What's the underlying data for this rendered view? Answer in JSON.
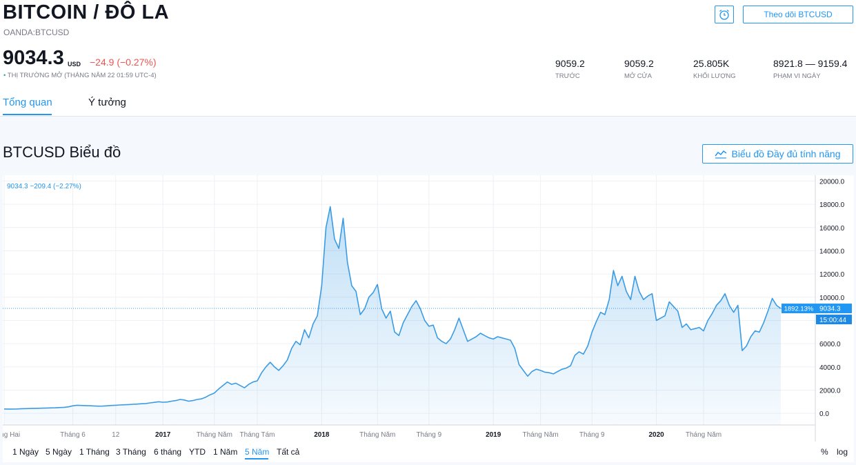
{
  "header": {
    "title": "BITCOIN / ĐÔ LA",
    "subtitle": "OANDA:BTCUSD",
    "follow_label": "Theo dõi BTCUSD"
  },
  "quote": {
    "price": "9034.3",
    "unit": "USD",
    "change": "−24.9 (−0.27%)",
    "status_dot": "•",
    "status": "THỊ TRƯỜNG MỞ",
    "status_time": "(THÁNG NĂM 22 01:59 UTC-4)"
  },
  "stats": [
    {
      "value": "9059.2",
      "label": "TRƯỚC"
    },
    {
      "value": "9059.2",
      "label": "MỞ CỬA"
    },
    {
      "value": "25.805K",
      "label": "KHỐI LƯỢNG"
    },
    {
      "value": "8921.8 — 9159.4",
      "label": "PHẠM VI NGÀY"
    }
  ],
  "tabs": [
    {
      "label": "Tổng quan",
      "active": true
    },
    {
      "label": "Ý tưởng",
      "active": false
    }
  ],
  "chart_section": {
    "title": "BTCUSD Biểu đồ",
    "full_chart_label": "Biểu đồ Đầy đủ tính năng"
  },
  "chart_data": {
    "type": "area",
    "legend_text": "9034.3  −209.4 (−2.27%)",
    "ylim": [
      -1000,
      20500
    ],
    "y_ticks": [
      "20000.0",
      "18000.0",
      "16000.0",
      "14000.0",
      "12000.0",
      "10000.0",
      "8000.0",
      "6000.0",
      "4000.0",
      "2000.0",
      "0.0"
    ],
    "x_ticks": [
      {
        "label": "Tháng Hai",
        "i": 0,
        "bold": false
      },
      {
        "label": "Tháng 6",
        "i": 16,
        "bold": false
      },
      {
        "label": "12",
        "i": 26,
        "bold": false
      },
      {
        "label": "2017",
        "i": 37,
        "bold": true
      },
      {
        "label": "Tháng Năm",
        "i": 49,
        "bold": false
      },
      {
        "label": "Tháng Tám",
        "i": 59,
        "bold": false
      },
      {
        "label": "2018",
        "i": 74,
        "bold": true
      },
      {
        "label": "Tháng Năm",
        "i": 87,
        "bold": false
      },
      {
        "label": "Tháng 9",
        "i": 99,
        "bold": false
      },
      {
        "label": "2019",
        "i": 114,
        "bold": true
      },
      {
        "label": "Tháng Năm",
        "i": 125,
        "bold": false
      },
      {
        "label": "Tháng 9",
        "i": 137,
        "bold": false
      },
      {
        "label": "2020",
        "i": 152,
        "bold": true
      },
      {
        "label": "Tháng Năm",
        "i": 163,
        "bold": false
      }
    ],
    "values": [
      380,
      370,
      370,
      375,
      400,
      410,
      420,
      430,
      440,
      450,
      460,
      470,
      480,
      500,
      520,
      560,
      650,
      700,
      680,
      670,
      660,
      640,
      620,
      630,
      650,
      680,
      700,
      720,
      740,
      760,
      780,
      800,
      830,
      850,
      900,
      950,
      1000,
      960,
      980,
      1050,
      1100,
      1200,
      1150,
      1050,
      1100,
      1200,
      1250,
      1400,
      1600,
      1750,
      2100,
      2400,
      2700,
      2500,
      2600,
      2400,
      2200,
      2500,
      2700,
      2800,
      3500,
      4000,
      4400,
      4000,
      3700,
      4100,
      4600,
      5600,
      6200,
      5900,
      7200,
      6500,
      7700,
      8400,
      11000,
      16000,
      17800,
      15000,
      14200,
      16800,
      13000,
      11000,
      10500,
      8500,
      9000,
      10000,
      10400,
      11100,
      9000,
      8200,
      8800,
      7000,
      6700,
      7800,
      8500,
      9200,
      9700,
      9000,
      8000,
      7500,
      7600,
      6500,
      6200,
      6000,
      6400,
      7200,
      8200,
      7200,
      6200,
      6400,
      6600,
      6900,
      6700,
      6500,
      6400,
      6600,
      6500,
      6400,
      6300,
      5600,
      4200,
      3700,
      3200,
      3600,
      3800,
      3700,
      3550,
      3500,
      3400,
      3600,
      3800,
      3900,
      4100,
      5000,
      5300,
      5100,
      5800,
      7000,
      7900,
      8700,
      8500,
      9800,
      12300,
      11000,
      11800,
      10500,
      9800,
      11800,
      10500,
      9800,
      10100,
      10300,
      8000,
      8200,
      8400,
      9600,
      9200,
      8800,
      7400,
      7700,
      7200,
      7300,
      7400,
      7100,
      8000,
      8600,
      9300,
      9700,
      10300,
      9300,
      8700,
      9300,
      5400,
      5800,
      6600,
      7100,
      7000,
      7800,
      8800,
      9900,
      9300,
      9034.3
    ],
    "last_value_label": "9034.3",
    "crosshair_pct_label": "1892.13%",
    "countdown_label": "15:00:44"
  },
  "ranges": [
    {
      "label": "1 Ngày",
      "active": false
    },
    {
      "label": "5 Ngày",
      "active": false
    },
    {
      "label": "1 Tháng",
      "active": false
    },
    {
      "label": "3 Tháng",
      "active": false
    },
    {
      "label": "6 tháng",
      "active": false
    },
    {
      "label": "YTD",
      "active": false
    },
    {
      "label": "1 Năm",
      "active": false
    },
    {
      "label": "5 Năm",
      "active": true
    },
    {
      "label": "Tất cả",
      "active": false
    }
  ],
  "scale_options": {
    "percent": "%",
    "log": "log"
  },
  "colors": {
    "accent": "#2196f3",
    "negative": "#ef5350",
    "positive": "#26a69a",
    "line": "#3a9be4"
  }
}
